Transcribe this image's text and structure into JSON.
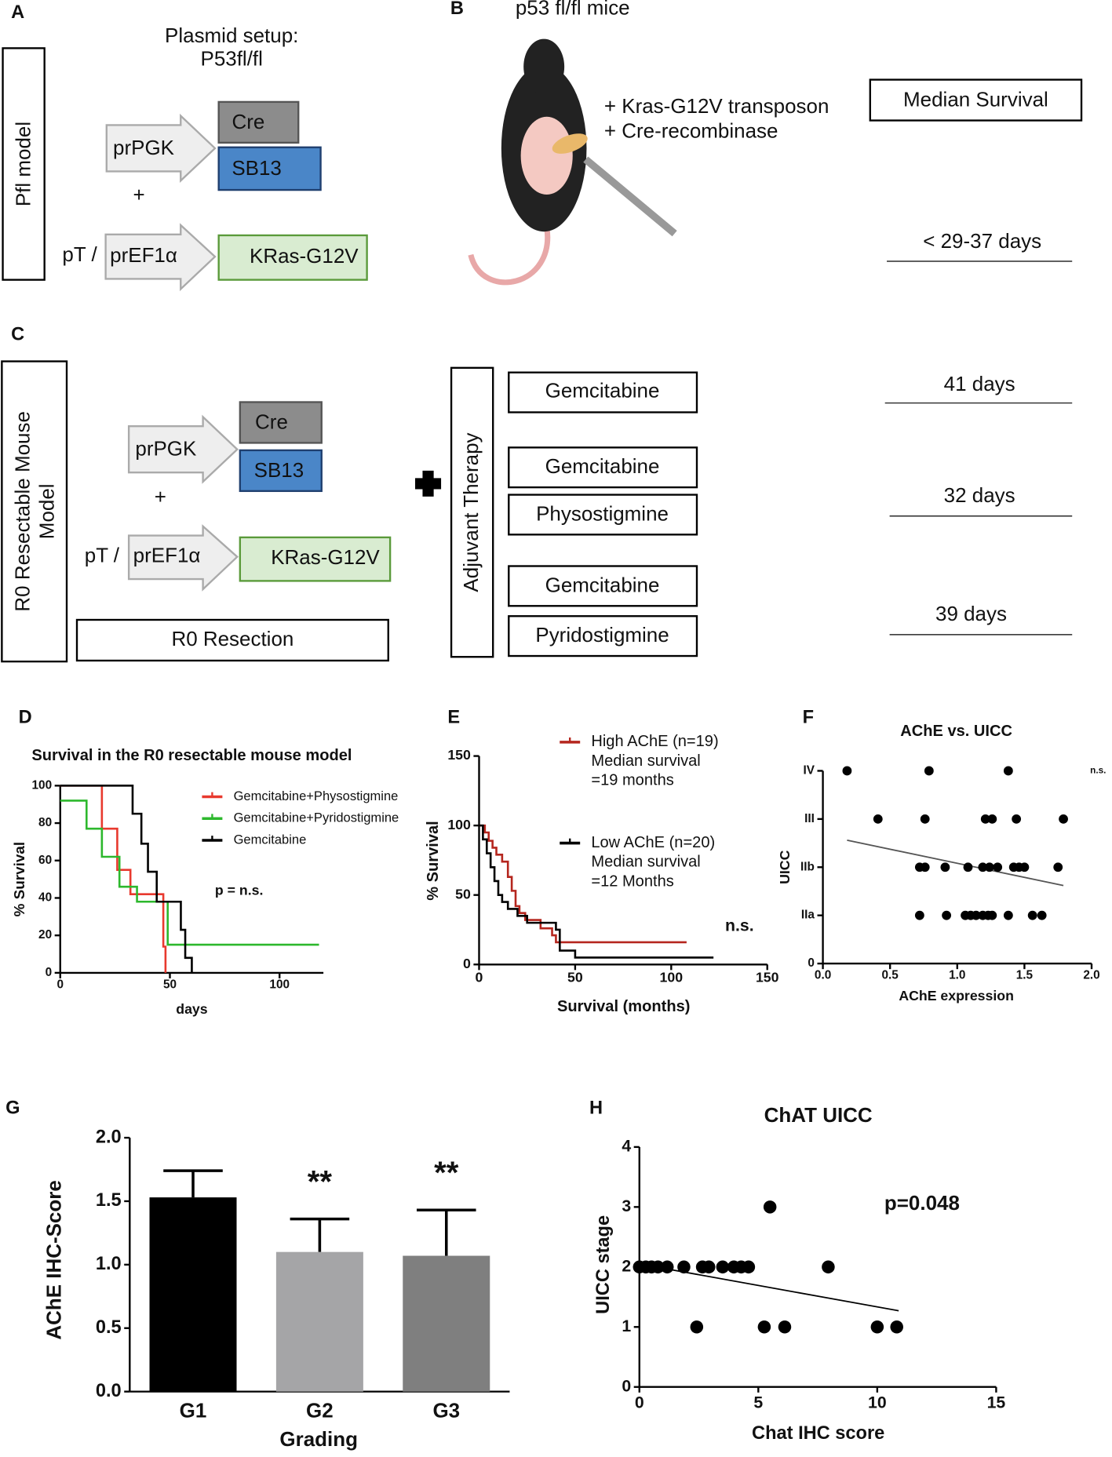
{
  "panels": {
    "a": {
      "label": "A",
      "title": [
        "Plasmid setup:",
        "P53fl/fl"
      ],
      "model": "Pfl model",
      "promoter1": "prPGK",
      "gene1": "Cre",
      "gene2": "SB13",
      "plus": "+",
      "prefix": "pT /",
      "promoter2": "prEF1α",
      "gene3": "KRas-G12V"
    },
    "b": {
      "label": "B",
      "title": "p53 fl/fl mice",
      "injection": [
        "+ Kras-G12V transposon",
        "+ Cre-recombinase"
      ],
      "survival_header": "Median Survival",
      "survival": "< 29-37 days"
    },
    "c": {
      "label": "C",
      "model": [
        "R0 Resectable Mouse",
        "Model"
      ],
      "promoter1": "prPGK",
      "gene1": "Cre",
      "gene2": "SB13",
      "plus": "+",
      "prefix": "pT /",
      "promoter2": "prEF1α",
      "gene3": "KRas-G12V",
      "resection": "R0 Resection",
      "therapy_label": "Adjuvant Therapy",
      "therapies": [
        [
          "Gemcitabine"
        ],
        [
          "Gemcitabine",
          "Physostigmine"
        ],
        [
          "Gemcitabine",
          "Pyridostigmine"
        ]
      ],
      "survival": [
        "41 days",
        "32 days",
        "39 days"
      ]
    }
  },
  "chart_data": [
    {
      "type": "line",
      "panel": "D",
      "title": "Survival in the R0 resectable mouse model",
      "y_label": "% Survival",
      "x_label": "days",
      "step": true,
      "xlim": [
        0,
        120
      ],
      "xticks": [
        0,
        50,
        100
      ],
      "ylim": [
        0,
        100
      ],
      "yticks": [
        0,
        20,
        40,
        60,
        80,
        100
      ],
      "annotation": "p = n.s.",
      "series": [
        {
          "name": "Gemcitabine+Physostigmine",
          "color": "#e8392e",
          "x": [
            0,
            19,
            26,
            32,
            47,
            48
          ],
          "values": [
            100,
            77,
            55,
            42,
            14,
            0
          ]
        },
        {
          "name": "Gemcitabine+Pyridostigmine",
          "color": "#2db82d",
          "x": [
            0,
            12,
            19,
            27,
            35,
            49,
            118
          ],
          "values": [
            92,
            77,
            62,
            46,
            38,
            15,
            15
          ]
        },
        {
          "name": "Gemcitabine",
          "color": "#000000",
          "x": [
            0,
            33,
            37,
            40,
            44,
            55,
            57,
            60
          ],
          "values": [
            100,
            85,
            69,
            54,
            38,
            23,
            8,
            0
          ]
        }
      ]
    },
    {
      "type": "line",
      "panel": "E",
      "y_label": "% Survival",
      "x_label": "Survival (months)",
      "step": true,
      "xlim": [
        0,
        150
      ],
      "xticks": [
        0,
        50,
        100,
        150
      ],
      "ylim": [
        0,
        150
      ],
      "yticks": [
        0,
        50,
        100,
        150
      ],
      "annotation": "n.s.",
      "series": [
        {
          "name": "High AChE (n=19)",
          "description": [
            "Median survival",
            "=19 months"
          ],
          "color": "#b5261e",
          "x": [
            0,
            3,
            5,
            7,
            9,
            12,
            15,
            17,
            19,
            21,
            24,
            32,
            38,
            40,
            108
          ],
          "values": [
            100,
            95,
            89,
            84,
            79,
            74,
            63,
            53,
            42,
            37,
            32,
            26,
            21,
            16,
            16
          ]
        },
        {
          "name": "Low AChE (n=20)",
          "description": [
            "Median survival",
            "=12 Months"
          ],
          "color": "#000000",
          "x": [
            0,
            2,
            4,
            6,
            8,
            10,
            12,
            15,
            20,
            25,
            30,
            40,
            42,
            50,
            122
          ],
          "values": [
            100,
            90,
            80,
            70,
            60,
            50,
            45,
            40,
            35,
            30,
            30,
            25,
            10,
            5,
            5
          ]
        }
      ]
    },
    {
      "type": "scatter",
      "panel": "F",
      "title": "AChE vs. UICC",
      "y_label": "UICC",
      "x_label": "AChE expression",
      "xlim": [
        0,
        2
      ],
      "xticks": [
        {
          "value": 0,
          "label": "0.0"
        },
        {
          "value": 0.5,
          "label": "0.5"
        },
        {
          "value": 1,
          "label": "1.0"
        },
        {
          "value": 1.5,
          "label": "1.5"
        },
        {
          "value": 2,
          "label": "2.0"
        }
      ],
      "ylim": [
        0,
        4
      ],
      "yticks": [
        0,
        {
          "value": 1,
          "label": "IIa"
        },
        {
          "value": 2,
          "label": "IIb"
        },
        {
          "value": 3,
          "label": "III"
        },
        {
          "value": 4,
          "label": "IV"
        }
      ],
      "annotation": "n.s.",
      "series": [
        {
          "color": "#000000",
          "x": [
            0.18,
            0.79,
            1.38,
            0.41,
            0.76,
            1.21,
            1.26,
            1.44,
            1.79,
            0.72,
            0.76,
            0.91,
            1.08,
            1.19,
            1.24,
            1.3,
            1.42,
            1.46,
            1.5,
            1.75,
            0.72,
            0.92,
            1.06,
            1.1,
            1.14,
            1.19,
            1.23,
            1.26,
            1.38,
            1.56,
            1.63
          ],
          "values": [
            4,
            4,
            4,
            3,
            3,
            3,
            3,
            3,
            3,
            2,
            2,
            2,
            2,
            2,
            2,
            2,
            2,
            2,
            2,
            2,
            1,
            1,
            1,
            1,
            1,
            1,
            1,
            1,
            1,
            1,
            1
          ]
        }
      ],
      "trendline": {
        "color": "#555555",
        "x": [
          0.18,
          1.79
        ],
        "values": [
          2.56,
          1.62
        ]
      }
    },
    {
      "type": "bar",
      "panel": "G",
      "y_label": "AChE  IHC-Score",
      "x_label": "Grading",
      "categories": [
        "G1",
        "G2",
        "G3"
      ],
      "values": [
        1.53,
        1.1,
        1.07
      ],
      "errors": [
        0.21,
        0.26,
        0.36
      ],
      "significance": [
        null,
        "**",
        "**"
      ],
      "colors": [
        "#000000",
        "#a5a5a7",
        "#7f7f7f"
      ],
      "ylim": [
        0,
        2
      ],
      "yticks": [
        {
          "value": 0,
          "label": "0.0"
        },
        {
          "value": 0.5,
          "label": "0.5"
        },
        {
          "value": 1,
          "label": "1.0"
        },
        {
          "value": 1.5,
          "label": "1.5"
        },
        {
          "value": 2,
          "label": "2.0"
        }
      ]
    },
    {
      "type": "scatter",
      "panel": "H",
      "title": "ChAT UICC",
      "y_label": "UICC stage",
      "x_label": "Chat IHC score",
      "xlim": [
        0,
        15
      ],
      "xticks": [
        0,
        5,
        10,
        15
      ],
      "ylim": [
        0,
        4
      ],
      "yticks": [
        0,
        1,
        2,
        3,
        4
      ],
      "annotation": "p=0.048",
      "series": [
        {
          "color": "#000000",
          "x": [
            0,
            0.27,
            0.51,
            0.78,
            1.17,
            1.87,
            2.65,
            2.92,
            3.5,
            3.97,
            4.28,
            4.59,
            7.94,
            5.49,
            2.41,
            5.25,
            6.11,
            10.0,
            10.82
          ],
          "values": [
            2,
            2,
            2,
            2,
            2,
            2,
            2,
            2,
            2,
            2,
            2,
            2,
            2,
            3,
            1,
            1,
            1,
            1,
            1
          ]
        }
      ],
      "trendline": {
        "color": "#000000",
        "x": [
          0,
          10.9
        ],
        "values": [
          2.05,
          1.27
        ]
      }
    }
  ]
}
